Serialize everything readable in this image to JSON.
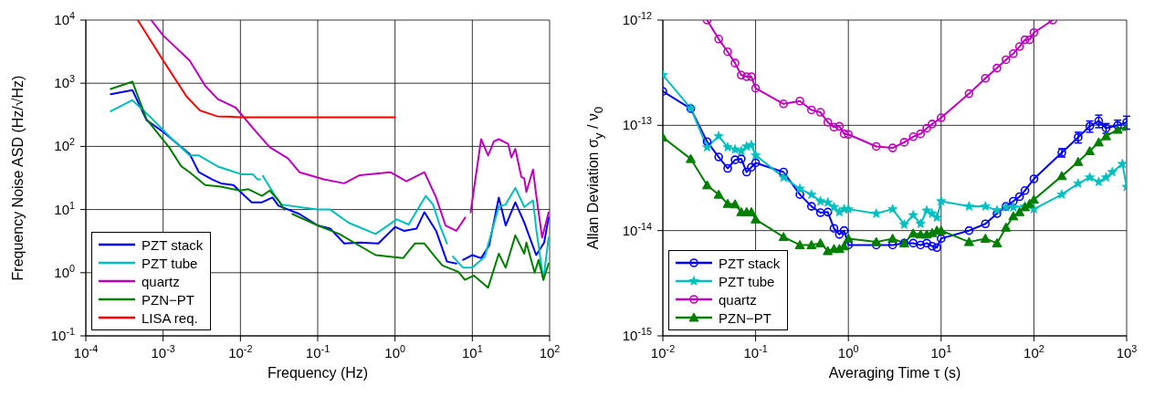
{
  "chart_data": [
    {
      "type": "line",
      "xlabel": "Frequency (Hz)",
      "ylabel": "Frequency Noise ASD (Hz/√Hz)",
      "log": "xy",
      "grid": true,
      "legend": "bottom left",
      "marker": "none",
      "xlim": [
        0.0001,
        100
      ],
      "ylim": [
        0.1,
        10000
      ],
      "xticks": [
        {
          "value": 0.0001,
          "label": "10$^{-4}$"
        },
        {
          "value": 0.001,
          "label": "10$^{-3}$"
        },
        {
          "value": 0.01,
          "label": "10$^{-2}$"
        },
        {
          "value": 0.1,
          "label": "10$^{-1}$"
        },
        {
          "value": 1,
          "label": "10$^{0}$"
        },
        {
          "value": 10,
          "label": "10$^{1}$"
        },
        {
          "value": 100,
          "label": "10$^{2}$"
        }
      ],
      "yticks": [
        {
          "value": 0.1,
          "label": "10$^{-1}$"
        },
        {
          "value": 1,
          "label": "10$^{0}$"
        },
        {
          "value": 10,
          "label": "10$^{1}$"
        },
        {
          "value": 100,
          "label": "10$^{2}$"
        },
        {
          "value": 1000,
          "label": "10$^{3}$"
        },
        {
          "value": 10000,
          "label": "10$^{4}$"
        }
      ],
      "series": [
        {
          "name": "PZT stack",
          "color": "#0000ff",
          "x": [
            0.00021,
            0.0004,
            0.00061,
            0.001,
            0.0022,
            0.0029,
            0.0043,
            0.0056,
            0.0081,
            0.012,
            0.014,
            0.019,
            0.026,
            0.031,
            0.058,
            0.1,
            0.145,
            0.22,
            0.35,
            0.61,
            1.0,
            1.3,
            1.9,
            2.4,
            3.4,
            4.7,
            6.2,
            6.9,
            7.6,
            10,
            13,
            16.5,
            22,
            27,
            36,
            47,
            67,
            85,
            97
          ],
          "values": [
            670,
            780,
            260,
            170,
            76,
            39,
            30,
            26,
            24.5,
            15.5,
            13,
            13,
            15.5,
            11.5,
            8.5,
            5.6,
            5,
            2.9,
            3.0,
            2.9,
            5.3,
            4.6,
            5.0,
            9.1,
            4.6,
            1.5,
            1.4,
            null,
            1.6,
            1.9,
            1.7,
            2.7,
            15.5,
            5.6,
            13,
            6.2,
            1.9,
            3.0,
            7.5
          ]
        },
        {
          "name": "PZT tube",
          "color": "#00bfbf",
          "x": [
            0.00021,
            0.0004,
            0.00065,
            0.0012,
            0.0022,
            0.0029,
            0.0051,
            0.0105,
            0.0145,
            0.0167,
            0.018,
            0.019,
            0.0195,
            0.029,
            0.034,
            0.065,
            0.1,
            0.145,
            0.25,
            0.56,
            1.05,
            1.5,
            2.5,
            3.1,
            3.8,
            4.7,
            5.1,
            5.6,
            7.6,
            10,
            14.5,
            22,
            27,
            36,
            47,
            61,
            67,
            83,
            97
          ],
          "values": [
            360,
            540,
            310,
            145,
            72,
            72,
            48,
            36,
            36,
            30,
            30,
            null,
            34,
            15.5,
            12,
            10.7,
            10,
            10,
            6.2,
            4.1,
            7.0,
            5.8,
            16.5,
            12,
            5.6,
            2.9,
            null,
            1.8,
            1.2,
            1.2,
            1.8,
            11.2,
            12,
            22,
            11,
            14,
            5,
            0.78,
            3.6
          ]
        },
        {
          "name": "quartz",
          "color": "#bf00bf",
          "x": [
            0.0007,
            0.001,
            0.0022,
            0.0035,
            0.0051,
            0.0087,
            0.0145,
            0.024,
            0.041,
            0.058,
            0.12,
            0.22,
            0.35,
            0.87,
            1.4,
            2.4,
            3.4,
            4.5,
            6.2,
            8.1,
            8.8,
            9.5,
            13,
            16,
            19,
            22,
            29,
            32,
            36,
            43,
            47,
            50,
            61,
            67,
            80,
            97
          ],
          "values": [
            10000,
            5700,
            2300,
            910,
            560,
            410,
            195,
            97,
            65,
            39,
            30,
            26,
            35,
            39,
            28,
            39,
            15.5,
            5.6,
            4.6,
            7.5,
            null,
            9,
            130,
            72,
            120,
            130,
            110,
            67,
            91,
            33,
            31,
            19,
            43,
            17,
            3.6,
            9
          ]
        },
        {
          "name": "PZN−PT",
          "color": "#007f00",
          "x": [
            0.00021,
            0.0004,
            0.00061,
            0.0012,
            0.0017,
            0.0022,
            0.0035,
            0.0056,
            0.0098,
            0.0127,
            0.019,
            0.024,
            0.031,
            0.037,
            0.042,
            0.047,
            0.1,
            0.19,
            0.56,
            1.27,
            1.8,
            2.4,
            3.4,
            4.1,
            6.6,
            8,
            10.5,
            16,
            22,
            27,
            36,
            47,
            50,
            64,
            72,
            83,
            97
          ],
          "values": [
            810,
            1060,
            270,
            96,
            49,
            39,
            24.5,
            23,
            20,
            21,
            16.5,
            20,
            14,
            10,
            null,
            8.5,
            5.6,
            4.1,
            1.9,
            1.7,
            2.9,
            2.9,
            1.7,
            1.3,
            1.03,
            0.77,
            0.9,
            0.58,
            2.0,
            1.2,
            3.9,
            2.0,
            3.0,
            1.0,
            1.6,
            0.77,
            1.4
          ]
        },
        {
          "name": "LISA req.",
          "color": "#ff0000",
          "x": [
            0.00047,
            0.001,
            0.002,
            0.003,
            0.005,
            0.01,
            0.1,
            1
          ],
          "values": [
            10000,
            2300,
            620,
            370,
            300,
            290,
            290,
            290
          ]
        }
      ]
    },
    {
      "type": "line",
      "xlabel": "Averaging Time τ (s)",
      "ylabel": "Allan Deviation  σ$_{y}$ / ν$_{0}$",
      "log": "xy",
      "grid": true,
      "legend": "bottom left",
      "xlim": [
        0.01,
        1000
      ],
      "ylim": [
        1e-15,
        1e-12
      ],
      "xticks": [
        {
          "value": 0.01,
          "label": "10$^{-2}$"
        },
        {
          "value": 0.1,
          "label": "10$^{-1}$"
        },
        {
          "value": 1,
          "label": "10$^{0}$"
        },
        {
          "value": 10,
          "label": "10$^{1}$"
        },
        {
          "value": 100,
          "label": "10$^{2}$"
        },
        {
          "value": 1000,
          "label": "10$^{3}$"
        }
      ],
      "yticks": [
        {
          "value": 1e-15,
          "label": "10$^{-15}$"
        },
        {
          "value": 1e-14,
          "label": "10$^{-14}$"
        },
        {
          "value": 1e-13,
          "label": "10$^{-13}$"
        },
        {
          "value": 1e-12,
          "label": "10$^{-12}$"
        }
      ],
      "series": [
        {
          "name": "PZT stack",
          "color": "#0000ff",
          "marker": "circle",
          "x": [
            0.01,
            0.02,
            0.03,
            0.04,
            0.05,
            0.06,
            0.07,
            0.08,
            0.09,
            0.1,
            0.2,
            0.3,
            0.4,
            0.5,
            0.6,
            0.7,
            0.8,
            0.9,
            1,
            2,
            3,
            4,
            5,
            6,
            7,
            8,
            9,
            10,
            20,
            30,
            40,
            50,
            60,
            70,
            80,
            100,
            200,
            300,
            400,
            500,
            600,
            800,
            1000
          ],
          "values": [
            2.1e-13,
            1.44e-13,
            7e-14,
            5e-14,
            3.9e-14,
            4.7e-14,
            4.8e-14,
            3.6e-14,
            4e-14,
            4.4e-14,
            3.6e-14,
            2.2e-14,
            1.7e-14,
            1.48e-14,
            1.5e-14,
            1.05e-14,
            9.2e-15,
            1e-14,
            7.3e-15,
            7.3e-15,
            7.3e-15,
            7.6e-15,
            7.6e-15,
            7.3e-15,
            7.6e-15,
            7.1e-15,
            6.9e-15,
            8.4e-15,
            1e-14,
            1.16e-14,
            1.45e-14,
            1.7e-14,
            1.9e-14,
            2.1e-14,
            2.4e-14,
            3.1e-14,
            5.5e-14,
            7.7e-14,
            9.8e-14,
            1.1e-13,
            9.4e-14,
            1e-13,
            1.07e-13
          ],
          "errors": [
            null,
            null,
            null,
            null,
            null,
            null,
            null,
            null,
            null,
            null,
            null,
            null,
            null,
            null,
            null,
            null,
            null,
            null,
            null,
            null,
            null,
            null,
            null,
            null,
            null,
            null,
            null,
            null,
            null,
            null,
            null,
            null,
            null,
            null,
            null,
            null,
            5e-15,
            9e-15,
            1.2e-14,
            1.5e-14,
            1e-14,
            1.2e-14,
            1.5e-14
          ]
        },
        {
          "name": "PZT tube",
          "color": "#00bfbf",
          "marker": "star",
          "x": [
            0.01,
            0.02,
            0.03,
            0.04,
            0.05,
            0.06,
            0.07,
            0.08,
            0.09,
            0.1,
            0.2,
            0.3,
            0.4,
            0.5,
            0.6,
            0.7,
            0.8,
            0.9,
            1,
            2,
            3,
            4,
            5,
            6,
            7,
            8,
            9,
            10,
            20,
            30,
            40,
            50,
            60,
            80,
            100,
            200,
            300,
            400,
            500,
            600,
            700,
            900,
            1000
          ],
          "values": [
            3e-13,
            1.45e-13,
            6.2e-14,
            7.9e-14,
            6.2e-14,
            5.9e-14,
            5.7e-14,
            6.3e-14,
            6.5e-14,
            5.2e-14,
            3.2e-14,
            2.5e-14,
            2.2e-14,
            1.9e-14,
            1.85e-14,
            1.67e-14,
            1.5e-14,
            1.6e-14,
            1.6e-14,
            1.45e-14,
            1.6e-14,
            1.14e-14,
            1.4e-14,
            1.16e-14,
            1.55e-14,
            1.45e-14,
            1.33e-14,
            1.9e-14,
            1.7e-14,
            1.7e-14,
            1.56e-14,
            1.67e-14,
            1.67e-14,
            1.7e-14,
            1.6e-14,
            2.2e-14,
            2.8e-14,
            3.2e-14,
            2.9e-14,
            3.2e-14,
            3.6e-14,
            4.3e-14,
            2.6e-14
          ]
        },
        {
          "name": "quartz",
          "color": "#bf00bf",
          "marker": "circle",
          "x": [
            0.03,
            0.04,
            0.05,
            0.06,
            0.07,
            0.08,
            0.09,
            0.1,
            0.2,
            0.3,
            0.4,
            0.5,
            0.6,
            0.7,
            0.8,
            0.9,
            1,
            2,
            3,
            4,
            5,
            6,
            7,
            8,
            10,
            20,
            30,
            40,
            50,
            60,
            70,
            80,
            90,
            100,
            160
          ],
          "values": [
            1e-12,
            6.6e-13,
            5e-13,
            3.9e-13,
            3e-13,
            2.9e-13,
            2.9e-13,
            2.25e-13,
            1.6e-13,
            1.7e-13,
            1.4e-13,
            1.33e-13,
            1.07e-13,
            9.6e-14,
            9.8e-14,
            8.3e-14,
            8.2e-14,
            6.3e-14,
            6.1e-14,
            6.9e-14,
            7.8e-14,
            8.3e-14,
            9.4e-14,
            1.03e-13,
            1.18e-13,
            2e-13,
            2.8e-13,
            3.5e-13,
            4.2e-13,
            4.8e-13,
            5.6e-13,
            6.5e-13,
            6.5e-13,
            7.6e-13,
            1e-12
          ]
        },
        {
          "name": "PZN−PT",
          "color": "#007f00",
          "marker": "triangle",
          "x": [
            0.01,
            0.02,
            0.03,
            0.04,
            0.05,
            0.06,
            0.07,
            0.08,
            0.09,
            0.1,
            0.2,
            0.3,
            0.4,
            0.5,
            0.6,
            0.7,
            0.8,
            0.9,
            1,
            2,
            3,
            4,
            5,
            6,
            7,
            8,
            9,
            10,
            20,
            30,
            40,
            50,
            60,
            70,
            80,
            90,
            100,
            200,
            300,
            400,
            500,
            600,
            800,
            1000
          ],
          "values": [
            7.7e-14,
            4.8e-14,
            2.7e-14,
            2.2e-14,
            1.8e-14,
            1.78e-14,
            1.5e-14,
            1.5e-14,
            1.5e-14,
            1.28e-14,
            8.7e-15,
            7.3e-15,
            7.3e-15,
            7.6e-15,
            6.4e-15,
            6.7e-15,
            6.7e-15,
            7.1e-15,
            8.4e-15,
            7.8e-15,
            8.4e-15,
            7.6e-15,
            9.4e-15,
            9.2e-15,
            9.2e-15,
            9.5e-15,
            1e-14,
            1e-14,
            7.8e-15,
            8.4e-15,
            7.6e-15,
            1.07e-14,
            1.37e-14,
            1.5e-14,
            1.67e-14,
            1.8e-14,
            1.97e-14,
            3.3e-14,
            4.5e-14,
            5.7e-14,
            6.9e-14,
            7.9e-14,
            9.1e-14,
            9.7e-14
          ]
        }
      ]
    }
  ]
}
